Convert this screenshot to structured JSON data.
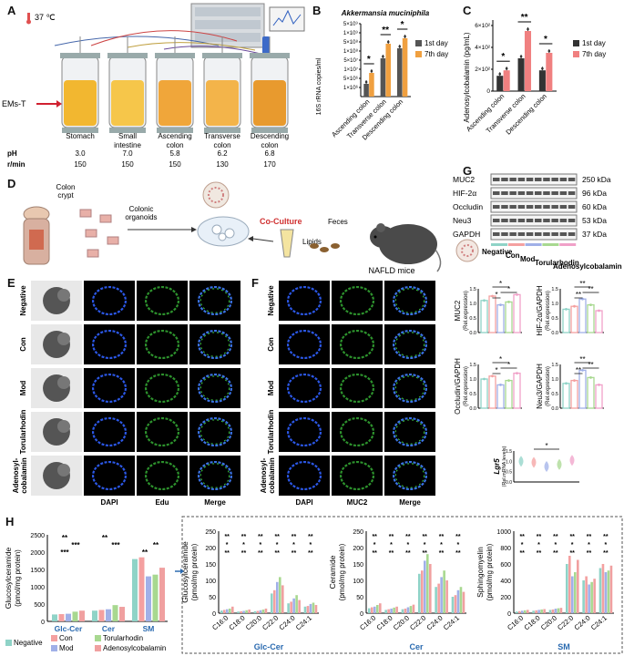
{
  "panel_letters": {
    "A": "A",
    "B": "B",
    "C": "C",
    "D": "D",
    "E": "E",
    "F": "F",
    "G": "G",
    "H": "H"
  },
  "panel_a": {
    "temperature": "37 ℃",
    "input_label": "EMs-T",
    "vessels": [
      "Stomach",
      "Small intestine",
      "Ascending colon",
      "Transverse colon",
      "Descending colon"
    ],
    "vessel_lines": [
      [
        "Stomach"
      ],
      [
        "Small",
        "intestine"
      ],
      [
        "Ascending",
        "colon"
      ],
      [
        "Transverse",
        "colon"
      ],
      [
        "Descending",
        "colon"
      ]
    ],
    "row_ph_label": "pH",
    "row_rpm_label": "r/min",
    "ph_values": [
      "3.0",
      "7.0",
      "5.8",
      "6.2",
      "6.8"
    ],
    "rpm_values": [
      "150",
      "150",
      "150",
      "130",
      "170"
    ],
    "colors": {
      "stomach": "#f2b730",
      "small": "#f6c64a",
      "asc": "#f0a63a",
      "trans": "#f3b44a",
      "desc": "#e89a2e"
    }
  },
  "panel_b_chart": {
    "type": "bar",
    "title": "Akkermansia muciniphila",
    "ylabel": "16S rRNA copies/ml",
    "categories": [
      "Ascending colon",
      "Transverse colon",
      "Descending colon"
    ],
    "ytick_labels": [
      "1×10⁶",
      "5×10⁶",
      "1×10⁷",
      "5×10⁷",
      "1×10⁸",
      "5×10⁸",
      "1×10⁹",
      "5×10⁹"
    ],
    "series": [
      {
        "name": "1st day",
        "color": "#555555",
        "values": [
          1.4,
          4.2,
          5.3
        ]
      },
      {
        "name": "7th day",
        "color": "#f0a040",
        "values": [
          2.6,
          5.8,
          6.4
        ]
      }
    ],
    "significance": [
      "*",
      "**",
      "*"
    ]
  },
  "panel_c_chart": {
    "type": "bar",
    "ylabel": "Adenosylcobalamin (pg/mL)",
    "categories": [
      "Ascending colon",
      "Transverse colon",
      "Descending colon"
    ],
    "yticks": [
      0,
      20,
      40,
      60
    ],
    "ytick_labels": [
      "0",
      "2×10²",
      "4×10²",
      "6×10²"
    ],
    "series": [
      {
        "name": "1st day",
        "color": "#333333",
        "values": [
          14,
          30,
          19
        ]
      },
      {
        "name": "7th day",
        "color": "#f08080",
        "values": [
          19,
          55,
          35
        ]
      }
    ],
    "ylim": [
      0,
      65
    ],
    "significance": [
      "*",
      "**",
      "*"
    ]
  },
  "panel_d": {
    "source_label": [
      "Colon",
      "crypt"
    ],
    "organoid_label": [
      "Colonic",
      "organoids"
    ],
    "coculture_label": "Co-Culture",
    "lipids_label": "Lipids",
    "feces_label": "Feces",
    "mice_label": "NAFLD mice"
  },
  "panel_e": {
    "rows": [
      "Negative",
      "Con",
      "Mod",
      "Torularhodin",
      "Adenosyl-cobalamin"
    ],
    "cols": [
      "DAPI",
      "Edu",
      "Merge"
    ]
  },
  "panel_f": {
    "rows": [
      "Negative",
      "Con",
      "Mod",
      "Torularhodin",
      "Adenosyl-cobalamin"
    ],
    "cols": [
      "DAPI",
      "MUC2",
      "Merge"
    ]
  },
  "panel_g": {
    "bands": [
      {
        "name": "MUC2",
        "kda": "250 kDa"
      },
      {
        "name": "HIF-2α",
        "kda": "96 kDa"
      },
      {
        "name": "Occludin",
        "kda": "60 kDa"
      },
      {
        "name": "Neu3",
        "kda": "53 kDa"
      },
      {
        "name": "GAPDH",
        "kda": "37 kDa"
      }
    ],
    "lane_labels": [
      "Negative",
      "Con",
      "Mod",
      "Torularhodin",
      "Adenosylcobalamin"
    ],
    "lane_colors": [
      "#8fd3c7",
      "#f4a0a0",
      "#a0b0e8",
      "#a8d890",
      "#f0a0c8"
    ]
  },
  "panel_g_charts": {
    "type": "bar",
    "group_colors": [
      "#8fd3c7",
      "#f4a0a0",
      "#a0b0e8",
      "#a8d890",
      "#f0a0c8"
    ],
    "yticks": [
      "0.0",
      "0.5",
      "1.0",
      "1.5"
    ],
    "sub_label": "(Rel.expression)",
    "charts": [
      {
        "ylabel": "MUC2",
        "values": [
          1.1,
          1.25,
          0.95,
          1.05,
          1.3
        ]
      },
      {
        "ylabel": "HIF-2α/GAPDH",
        "values": [
          0.8,
          0.9,
          1.15,
          0.95,
          0.75
        ]
      },
      {
        "ylabel": "Occludin/GAPDH",
        "values": [
          1.0,
          1.1,
          0.8,
          0.95,
          1.2
        ]
      },
      {
        "ylabel": "Neu3/GAPDH",
        "values": [
          0.85,
          0.95,
          1.3,
          1.05,
          0.8
        ]
      }
    ],
    "lgr5": {
      "ylabel": "Lgr5",
      "sub_label": "(Rel.mRNA levels)",
      "yticks": [
        "0.0",
        "0.5",
        "1.0",
        "1.5"
      ],
      "values": [
        1.0,
        0.95,
        0.75,
        0.85,
        1.05
      ]
    }
  },
  "panel_h_left": {
    "type": "bar",
    "ylabel": [
      "Glucosylceramide",
      "(pmol/mg protein)"
    ],
    "yticks": [
      "0",
      "500",
      "1000",
      "1500",
      "2000",
      "2500"
    ],
    "groups": [
      "Glc-Cer",
      "Cer",
      "SM"
    ],
    "series": [
      {
        "name": "Negative",
        "color": "#8fd3c7",
        "values": [
          200,
          310,
          1800
        ]
      },
      {
        "name": "Con",
        "color": "#f4a0a0",
        "values": [
          210,
          330,
          1850
        ]
      },
      {
        "name": "Mod",
        "color": "#a0b0e8",
        "values": [
          220,
          350,
          1300
        ]
      },
      {
        "name": "Torularhodin",
        "color": "#a8d890",
        "values": [
          280,
          470,
          1350
        ]
      },
      {
        "name": "Adenosylcobalamin",
        "color": "#f0a0a0",
        "values": [
          310,
          420,
          1550
        ]
      }
    ],
    "ylim": [
      0,
      2500
    ]
  },
  "panel_h_right": [
    {
      "ylabel": [
        "Glucosylceramide",
        "(pmol/mg protein)"
      ],
      "yticks": [
        "0",
        "50",
        "100",
        "150",
        "200",
        "250"
      ],
      "ymax": 250,
      "group_label": "Glc-Cer",
      "categories": [
        "C16:0",
        "C18:0",
        "C20:0",
        "C22:0",
        "C24:0",
        "C24:1"
      ],
      "values": [
        [
          8,
          10,
          12,
          14,
          20
        ],
        [
          5,
          6,
          7,
          9,
          11
        ],
        [
          6,
          7,
          9,
          11,
          14
        ],
        [
          60,
          70,
          95,
          110,
          85
        ],
        [
          30,
          35,
          45,
          55,
          40
        ],
        [
          20,
          22,
          28,
          32,
          25
        ]
      ]
    },
    {
      "ylabel": [
        "Ceramide",
        "(pmol/mg protein)"
      ],
      "yticks": [
        "0",
        "50",
        "100",
        "150",
        "200",
        "250"
      ],
      "ymax": 250,
      "group_label": "Cer",
      "categories": [
        "C16:0",
        "C18:0",
        "C20:0",
        "C22:0",
        "C24:0",
        "C24:1"
      ],
      "values": [
        [
          15,
          18,
          20,
          25,
          30
        ],
        [
          10,
          12,
          14,
          17,
          20
        ],
        [
          12,
          14,
          18,
          22,
          26
        ],
        [
          120,
          130,
          160,
          180,
          150
        ],
        [
          80,
          90,
          110,
          130,
          100
        ],
        [
          50,
          55,
          70,
          80,
          65
        ]
      ]
    },
    {
      "ylabel": [
        "Sphingomyelin",
        "(pmol/mg protein)"
      ],
      "yticks": [
        "0",
        "200",
        "400",
        "600",
        "800",
        "1000"
      ],
      "ymax": 1000,
      "group_label": "SM",
      "categories": [
        "C16:0",
        "C18:0",
        "C20:0",
        "C22:0",
        "C24:0",
        "C24:1"
      ],
      "values": [
        [
          20,
          25,
          30,
          35,
          40
        ],
        [
          30,
          35,
          40,
          45,
          50
        ],
        [
          40,
          45,
          55,
          60,
          65
        ],
        [
          600,
          700,
          450,
          500,
          650
        ],
        [
          400,
          450,
          350,
          380,
          420
        ],
        [
          550,
          600,
          500,
          520,
          580
        ]
      ]
    }
  ],
  "legend_h": [
    "Negative",
    "Con",
    "Mod",
    "Torularhodin",
    "Adenosylcobalamin"
  ]
}
